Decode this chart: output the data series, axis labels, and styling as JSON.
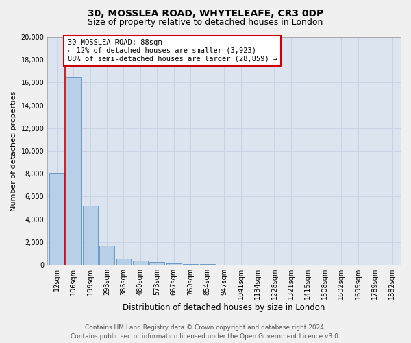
{
  "title_line1": "30, MOSSLEA ROAD, WHYTELEAFE, CR3 0DP",
  "title_line2": "Size of property relative to detached houses in London",
  "xlabel": "Distribution of detached houses by size in London",
  "ylabel": "Number of detached properties",
  "categories": [
    "12sqm",
    "106sqm",
    "199sqm",
    "293sqm",
    "386sqm",
    "480sqm",
    "573sqm",
    "667sqm",
    "760sqm",
    "854sqm",
    "947sqm",
    "1041sqm",
    "1134sqm",
    "1228sqm",
    "1321sqm",
    "1415sqm",
    "1508sqm",
    "1602sqm",
    "1695sqm",
    "1789sqm",
    "1882sqm"
  ],
  "values": [
    8050,
    16500,
    5200,
    1700,
    550,
    390,
    230,
    150,
    95,
    60,
    0,
    0,
    0,
    0,
    0,
    0,
    0,
    0,
    0,
    0,
    0
  ],
  "bar_color": "#b8cfe8",
  "bar_edge_color": "#6090c0",
  "annotation_text_line1": "30 MOSSLEA ROAD: 88sqm",
  "annotation_text_line2": "← 12% of detached houses are smaller (3,923)",
  "annotation_text_line3": "88% of semi-detached houses are larger (28,859) →",
  "annotation_box_facecolor": "#ffffff",
  "annotation_box_edgecolor": "#cc0000",
  "red_line_color": "#cc0000",
  "red_line_x": 0.5,
  "ylim": [
    0,
    20000
  ],
  "yticks": [
    0,
    2000,
    4000,
    6000,
    8000,
    10000,
    12000,
    14000,
    16000,
    18000,
    20000
  ],
  "grid_color": "#c8d4e4",
  "plot_bg_color": "#dce4f0",
  "fig_bg_color": "#f0f0f0",
  "footer_line1": "Contains HM Land Registry data © Crown copyright and database right 2024.",
  "footer_line2": "Contains public sector information licensed under the Open Government Licence v3.0.",
  "title_fontsize": 10,
  "subtitle_fontsize": 9,
  "xlabel_fontsize": 8.5,
  "ylabel_fontsize": 8,
  "tick_fontsize": 7,
  "annot_fontsize": 7.5,
  "footer_fontsize": 6.5
}
